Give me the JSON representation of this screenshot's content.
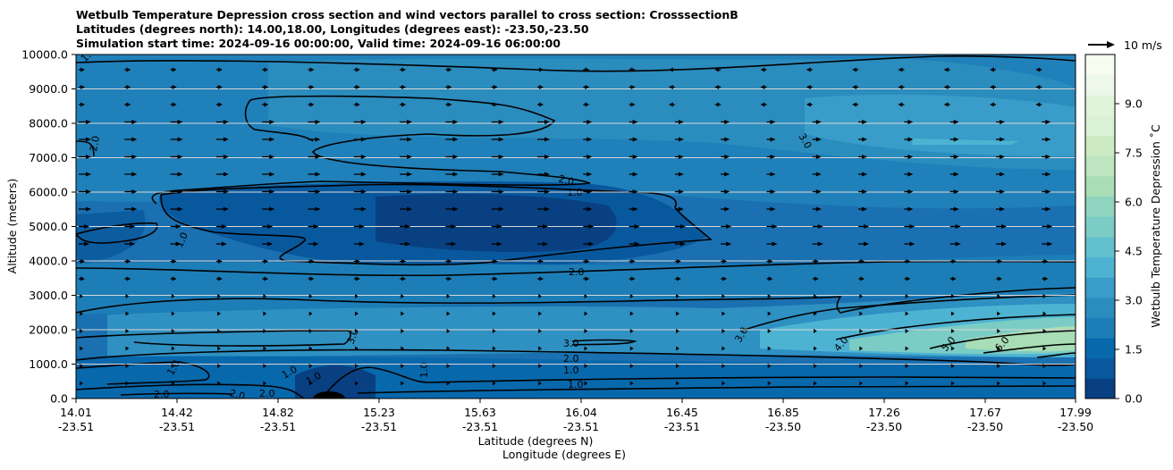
{
  "title_lines": [
    "Wetbulb Temperature Depression cross section and wind vectors parallel to cross section: CrosssectionB",
    "Latitudes (degrees north): 14.00,18.00, Longitudes (degrees east): -23.50,-23.50",
    "Simulation start time: 2024-09-16 00:00:00, Valid time: 2024-09-16 06:00:00"
  ],
  "quiver_key": "10 m/s",
  "chart_data": {
    "type": "heatmap",
    "description_kind": "filled contour cross section with line contours and wind vectors",
    "xlabel": "Latitude (degrees N)",
    "xlabel2": "Longitude (degrees E)",
    "ylabel": "Altitude (meters)",
    "ylim": [
      0,
      10000
    ],
    "yticks": [
      "0.0",
      "1000.0",
      "2000.0",
      "3000.0",
      "4000.0",
      "5000.0",
      "6000.0",
      "7000.0",
      "8000.0",
      "9000.0",
      "10000.0"
    ],
    "xticks": [
      {
        "lat": "14.01",
        "lon": "-23.51"
      },
      {
        "lat": "14.42",
        "lon": "-23.51"
      },
      {
        "lat": "14.82",
        "lon": "-23.51"
      },
      {
        "lat": "15.23",
        "lon": "-23.51"
      },
      {
        "lat": "15.63",
        "lon": "-23.51"
      },
      {
        "lat": "16.04",
        "lon": "-23.51"
      },
      {
        "lat": "16.45",
        "lon": "-23.51"
      },
      {
        "lat": "16.85",
        "lon": "-23.50"
      },
      {
        "lat": "17.26",
        "lon": "-23.50"
      },
      {
        "lat": "17.67",
        "lon": "-23.50"
      },
      {
        "lat": "17.99",
        "lon": "-23.50"
      }
    ],
    "colorbar": {
      "label": "Wetbulb Temperature Depression ˚C",
      "range": [
        0,
        10.5
      ],
      "ticks": [
        "0.0",
        "1.5",
        "3.0",
        "4.5",
        "6.0",
        "7.5",
        "9.0"
      ],
      "colors": [
        "#084081",
        "#08589e",
        "#0868ac",
        "#1d7eb7",
        "#2b8cbe",
        "#3a9cc8",
        "#4eb3d3",
        "#62c0cc",
        "#7bccc4",
        "#8fd4bf",
        "#a8ddb5",
        "#bde5c0",
        "#ccebc5",
        "#dbf1d6",
        "#e0f3db",
        "#eef8ea",
        "#f7fcf0"
      ]
    },
    "grid": true,
    "contour_labels": [
      "1.0",
      "2.0",
      "2.0",
      "1.0",
      "1.0",
      "3.0",
      "1.0",
      "1.0",
      "2.0",
      "2.0",
      "2.0",
      "1.0",
      "3.0",
      "2.0",
      "1.0",
      "1.0",
      "2.0",
      "3.0",
      "3.0",
      "4.0",
      "5.0",
      "6.0",
      "1.0"
    ]
  }
}
